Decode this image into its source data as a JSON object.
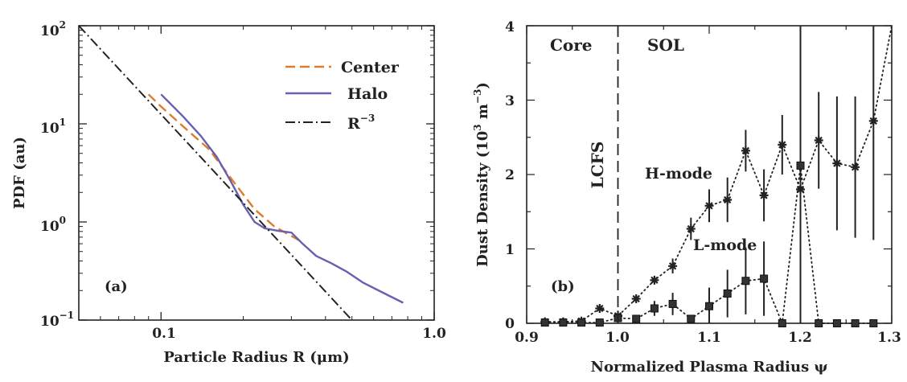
{
  "chart_data": [
    {
      "type": "line",
      "panel_label": "(a)",
      "xlabel": "Particle Radius R (μm)",
      "ylabel": "PDF (au)",
      "xscale": "log",
      "yscale": "log",
      "xlim": [
        0.05,
        1.0
      ],
      "ylim": [
        0.1,
        100
      ],
      "xticks": [
        {
          "value": 0.1,
          "label": "0.1"
        },
        {
          "value": 1.0,
          "label": "1.0"
        }
      ],
      "yticks": [
        {
          "value": 0.1,
          "base": "10",
          "exp": "−1"
        },
        {
          "value": 1,
          "base": "10",
          "exp": "0"
        },
        {
          "value": 10,
          "base": "10",
          "exp": "1"
        },
        {
          "value": 100,
          "base": "10",
          "exp": "2"
        }
      ],
      "legend_position": "top-right",
      "series": [
        {
          "name": "Center",
          "style": "dashed",
          "color": "#e07b2c",
          "x": [
            0.09,
            0.1,
            0.12,
            0.15,
            0.18,
            0.22,
            0.26,
            0.3,
            0.33
          ],
          "y": [
            20,
            15,
            9.5,
            5.5,
            2.8,
            1.35,
            0.9,
            0.72,
            0.62
          ]
        },
        {
          "name": "Halo",
          "style": "solid",
          "color": "#6a5fb0",
          "x": [
            0.1,
            0.12,
            0.14,
            0.16,
            0.18,
            0.2,
            0.22,
            0.24,
            0.27,
            0.3,
            0.33,
            0.37,
            0.42,
            0.48,
            0.55,
            0.65,
            0.77
          ],
          "y": [
            20,
            12,
            7.5,
            4.6,
            2.6,
            1.5,
            1.0,
            0.86,
            0.81,
            0.78,
            0.6,
            0.45,
            0.38,
            0.31,
            0.24,
            0.19,
            0.15
          ]
        },
        {
          "name": "R",
          "name_sup": "−3",
          "style": "dashdot",
          "color": "#222222",
          "x": [
            0.05,
            0.5
          ],
          "y": [
            100,
            0.1
          ]
        }
      ]
    },
    {
      "type": "scatter",
      "panel_label": "(b)",
      "xlabel": "Normalized Plasma Radius ψ",
      "ylabel": "Dust Density (10",
      "ylabel_sup": "3",
      "ylabel_tail": " m",
      "ylabel_sup2": "−3",
      "ylabel_end": ")",
      "xlim": [
        0.9,
        1.3
      ],
      "ylim": [
        0,
        4
      ],
      "xticks": [
        "0.9",
        "1.0",
        "1.1",
        "1.2",
        "1.3"
      ],
      "yticks": [
        "0",
        "1",
        "2",
        "3",
        "4"
      ],
      "annotations": {
        "core": "Core",
        "sol": "SOL",
        "lcfs": "LCFS",
        "lcfs_x": 1.0
      },
      "series": [
        {
          "name": "H-mode",
          "marker": "star",
          "x": [
            0.92,
            0.94,
            0.96,
            0.98,
            1.0,
            1.02,
            1.04,
            1.06,
            1.08,
            1.1,
            1.12,
            1.14,
            1.16,
            1.18,
            1.2,
            1.22,
            1.24,
            1.26,
            1.28,
            1.3
          ],
          "y": [
            0.02,
            0.02,
            0.03,
            0.2,
            0.1,
            0.33,
            0.58,
            0.77,
            1.27,
            1.58,
            1.66,
            2.32,
            1.72,
            2.4,
            1.8,
            2.46,
            2.15,
            2.1,
            2.72,
            4.0
          ],
          "err": [
            0,
            0,
            0,
            0,
            0,
            0,
            0,
            0.1,
            0.15,
            0.22,
            0.3,
            0.28,
            0.35,
            0.4,
            2.0,
            0.65,
            0.9,
            0.95,
            1.6,
            0
          ]
        },
        {
          "name": "L-mode",
          "marker": "square",
          "x": [
            0.92,
            0.94,
            0.96,
            0.98,
            1.0,
            1.02,
            1.04,
            1.06,
            1.08,
            1.1,
            1.12,
            1.14,
            1.16,
            1.18,
            1.2,
            1.22,
            1.24,
            1.26,
            1.28
          ],
          "y": [
            0.01,
            0.01,
            0.01,
            0.01,
            0.07,
            0.06,
            0.2,
            0.26,
            0.06,
            0.23,
            0.4,
            0.57,
            0.6,
            0.0,
            2.12,
            0.0,
            0.0,
            0.0,
            0.0
          ],
          "err": [
            0,
            0,
            0,
            0,
            0.1,
            0,
            0.1,
            0.15,
            0,
            0.25,
            0.32,
            0.45,
            0.5,
            0,
            2.0,
            0,
            0,
            0,
            0
          ]
        }
      ]
    }
  ]
}
